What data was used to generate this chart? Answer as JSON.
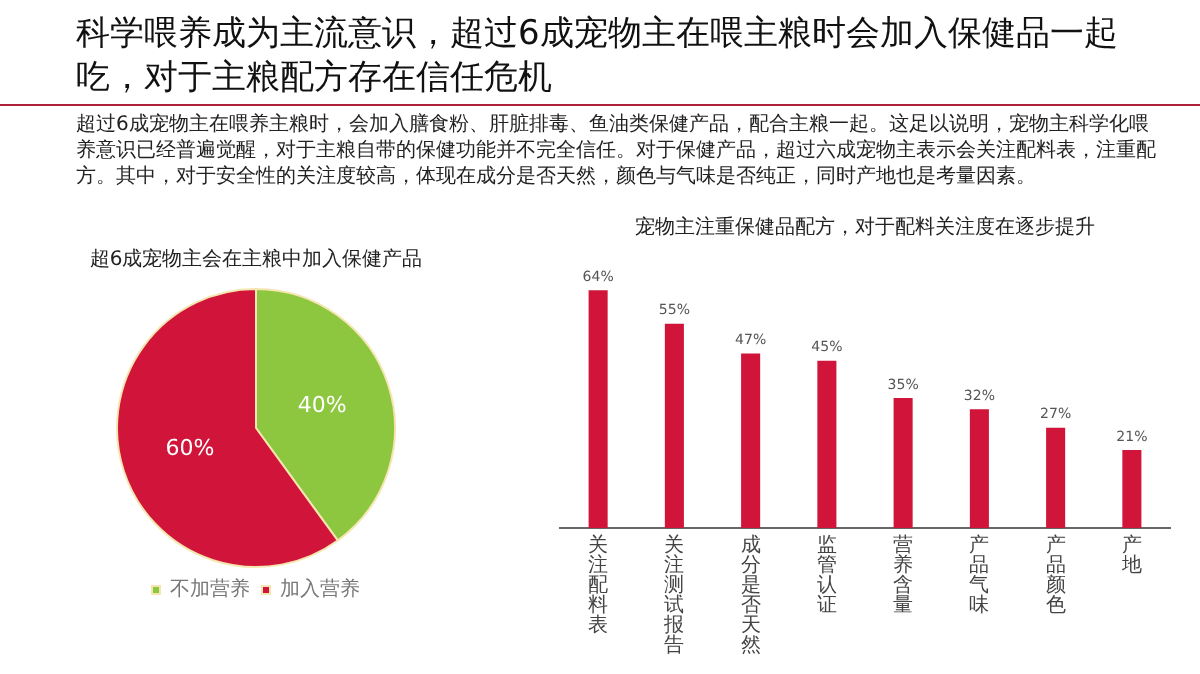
{
  "chart_data": [
    {
      "type": "other",
      "title": "科学喂养成为主流意识，超过6成宠物主在喂主粮时会加入保健品一起吃，对于主粮配方存在信任危机",
      "annotations": [
        "超过6成宠物主在喂养主粮时，会加入膳食粉、肝脏排毒、鱼油类保健产品，配合主粮一起。这足以说明，宠物主科学化喂养意识已经普遍觉醒，对于主粮自带的保健功能并不完全信任。对于保健产品，超过六成宠物主表示会关注配料表，注重配方。其中，对于安全性的关注度较高，体现在成分是否天然，颜色与气味是否纯正，同时产地也是考量因素。"
      ]
    },
    {
      "type": "pie",
      "title": "超6成宠物主会在主粮中加入保健产品",
      "categories": [
        "不加营养",
        "加入营养"
      ],
      "values": [
        40,
        60
      ],
      "colors": [
        "#8dc63f",
        "#d0143a"
      ],
      "value_labels": [
        "40%",
        "60%"
      ],
      "legend": "bottom"
    },
    {
      "type": "bar",
      "title": "宠物主注重保健品配方，对于配料关注度在逐步提升",
      "categories": [
        "关注配料表",
        "关注测试报告",
        "成分是否天然",
        "监管认证",
        "营养含量",
        "产品气味",
        "产品颜色",
        "产地"
      ],
      "values": [
        64,
        55,
        47,
        45,
        35,
        32,
        27,
        21
      ],
      "color": "#d0143a",
      "value_labels": [
        "64%",
        "55%",
        "47%",
        "45%",
        "35%",
        "32%",
        "27%",
        "21%"
      ],
      "tick_labels": "x",
      "grid": false,
      "legend": false
    }
  ]
}
